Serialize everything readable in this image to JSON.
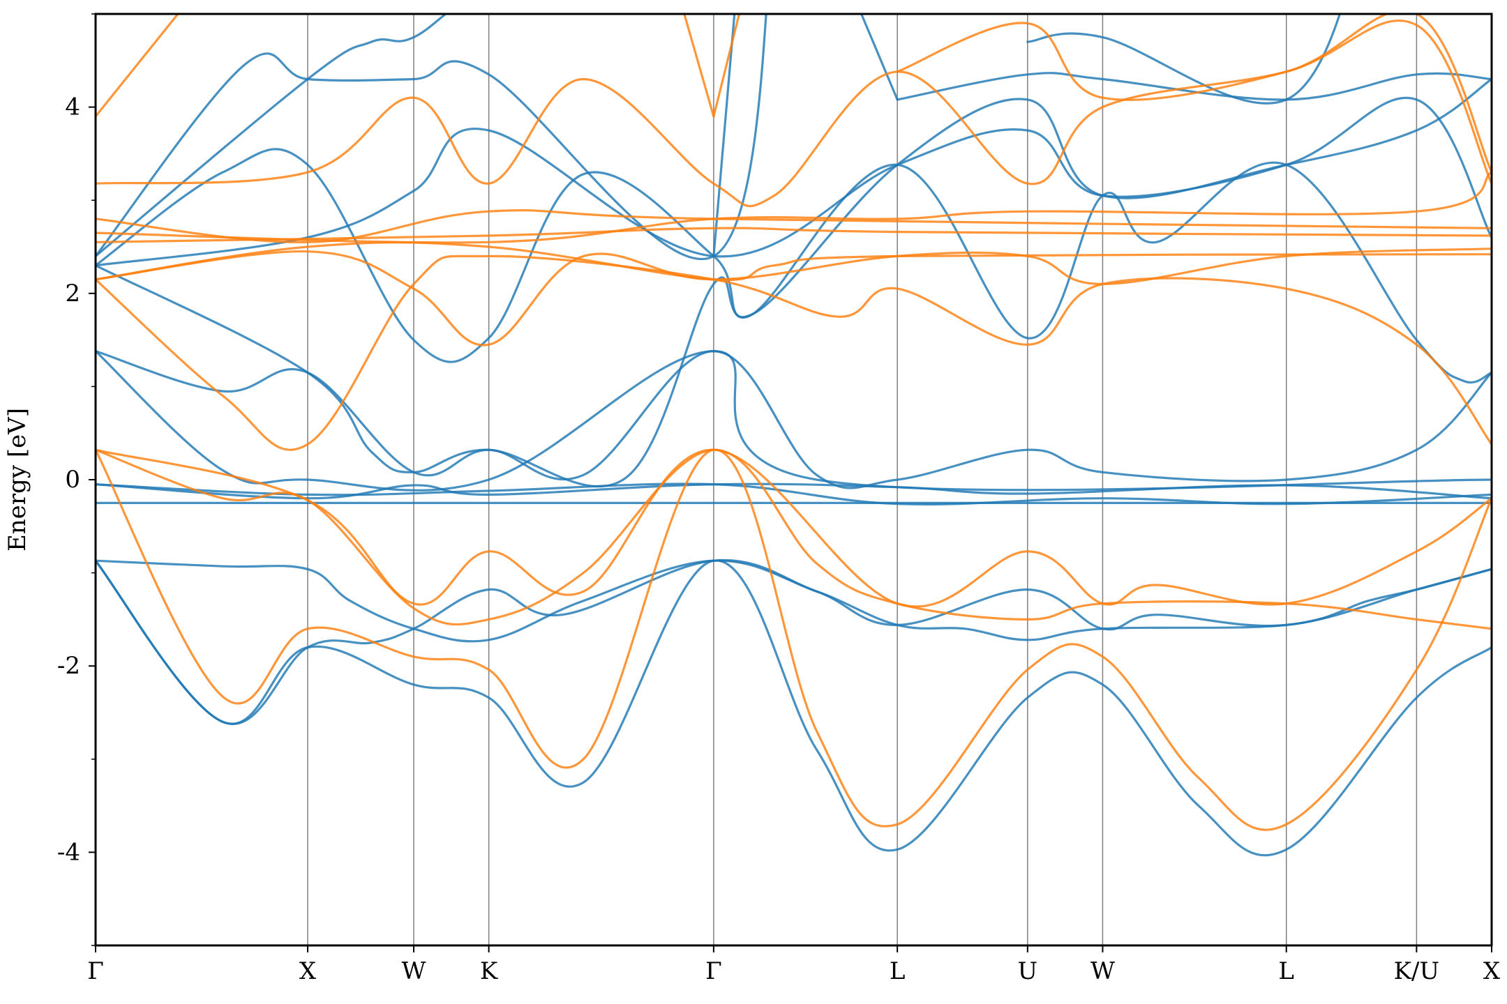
{
  "chart_data": {
    "type": "line",
    "title": "",
    "xlabel": "",
    "ylabel": "Energy [eV]",
    "ylim": [
      -5,
      5
    ],
    "y_ticks": [
      -4,
      -2,
      0,
      2,
      4
    ],
    "y_tick_labels": [
      "-4",
      "-2",
      "0",
      "2",
      "4"
    ],
    "y_minor_ticks": [
      -5,
      -3,
      -1,
      1,
      3,
      5
    ],
    "grid": false,
    "legend": "none",
    "colors": {
      "spin_up": "#1f77b4",
      "spin_down": "#ff7f0e",
      "kpath_lines": "#7f7f7f"
    },
    "kpath": {
      "labels": [
        "Γ",
        "X",
        "W",
        "K",
        "Γ",
        "L",
        "U",
        "W",
        "L",
        "K/U",
        "X"
      ],
      "positions": [
        0,
        1.0,
        1.5,
        1.854,
        2.914,
        3.78,
        4.394,
        4.748,
        5.614,
        6.228,
        6.582
      ],
      "xlim": [
        0,
        6.582
      ]
    },
    "series": [
      {
        "color": "#1f77b4",
        "points": [
          [
            0,
            -0.87
          ],
          [
            0.6,
            -0.93
          ],
          [
            1.0,
            -0.96
          ],
          [
            1.2,
            -1.3
          ],
          [
            1.5,
            -1.6
          ],
          [
            1.854,
            -1.72
          ],
          [
            2.3,
            -1.3
          ],
          [
            2.914,
            -0.87
          ],
          [
            3.4,
            -1.2
          ],
          [
            3.78,
            -1.56
          ],
          [
            4.1,
            -1.6
          ],
          [
            4.394,
            -1.72
          ],
          [
            4.748,
            -1.6
          ],
          [
            5.614,
            -1.56
          ],
          [
            6.0,
            -1.3
          ],
          [
            6.228,
            -1.18
          ],
          [
            6.582,
            -0.96
          ]
        ]
      },
      {
        "color": "#1f77b4",
        "points": [
          [
            0,
            -0.87
          ],
          [
            0.6,
            -2.6
          ],
          [
            1.0,
            -1.8
          ],
          [
            1.3,
            -1.75
          ],
          [
            1.5,
            -1.6
          ],
          [
            1.854,
            -1.18
          ],
          [
            2.2,
            -1.45
          ],
          [
            2.914,
            -0.87
          ],
          [
            3.4,
            -1.2
          ],
          [
            3.78,
            -1.56
          ],
          [
            4.394,
            -1.18
          ],
          [
            4.748,
            -1.6
          ],
          [
            5.0,
            -1.45
          ],
          [
            5.614,
            -1.56
          ],
          [
            6.228,
            -1.18
          ],
          [
            6.582,
            -0.96
          ]
        ]
      },
      {
        "color": "#1f77b4",
        "points": [
          [
            0,
            -0.87
          ],
          [
            0.6,
            -2.6
          ],
          [
            1.0,
            -1.8
          ],
          [
            1.5,
            -2.2
          ],
          [
            1.854,
            -2.34
          ],
          [
            2.3,
            -3.25
          ],
          [
            2.914,
            -0.87
          ],
          [
            3.4,
            -2.9
          ],
          [
            3.78,
            -3.97
          ],
          [
            4.394,
            -2.34
          ],
          [
            4.748,
            -2.2
          ],
          [
            5.2,
            -3.5
          ],
          [
            5.614,
            -3.97
          ],
          [
            6.228,
            -2.34
          ],
          [
            6.582,
            -1.8
          ]
        ]
      },
      {
        "color": "#1f77b4",
        "points": [
          [
            0,
            -0.25
          ],
          [
            6.582,
            -0.25
          ]
        ]
      },
      {
        "color": "#1f77b4",
        "points": [
          [
            0,
            -0.05
          ],
          [
            1.0,
            -0.16
          ],
          [
            1.854,
            -0.12
          ],
          [
            2.914,
            -0.05
          ],
          [
            3.78,
            -0.26
          ],
          [
            4.748,
            -0.2
          ],
          [
            5.614,
            -0.26
          ],
          [
            6.582,
            -0.16
          ]
        ]
      },
      {
        "color": "#1f77b4",
        "points": [
          [
            0,
            -0.05
          ],
          [
            1.0,
            -0.2
          ],
          [
            1.5,
            -0.06
          ],
          [
            1.854,
            -0.16
          ],
          [
            2.914,
            -0.05
          ],
          [
            3.78,
            -0.08
          ],
          [
            4.394,
            -0.15
          ],
          [
            5.614,
            -0.06
          ],
          [
            6.582,
            -0.2
          ]
        ]
      },
      {
        "color": "#1f77b4",
        "points": [
          [
            0,
            1.38
          ],
          [
            0.6,
            0.95
          ],
          [
            1.0,
            1.15
          ],
          [
            1.5,
            0.08
          ],
          [
            1.854,
            0.32
          ],
          [
            2.3,
            0.05
          ],
          [
            2.914,
            1.38
          ],
          [
            3.4,
            0.05
          ],
          [
            3.78,
            0.0
          ],
          [
            4.394,
            0.32
          ],
          [
            4.748,
            0.08
          ],
          [
            5.614,
            0.0
          ],
          [
            6.228,
            0.32
          ],
          [
            6.582,
            1.15
          ]
        ]
      },
      {
        "color": "#1f77b4",
        "points": [
          [
            0,
            1.38
          ],
          [
            0.6,
            0.1
          ],
          [
            1.0,
            0.0
          ],
          [
            1.854,
            0.0
          ],
          [
            2.914,
            1.38
          ],
          [
            3.4,
            0.0
          ],
          [
            6.582,
            0.0
          ]
        ]
      },
      {
        "color": "#1f77b4",
        "points": [
          [
            0,
            2.3
          ],
          [
            1.0,
            1.15
          ],
          [
            1.3,
            0.3
          ],
          [
            1.5,
            0.08
          ],
          [
            1.854,
            0.32
          ],
          [
            2.5,
            0.02
          ],
          [
            2.914,
            2.1
          ],
          [
            3.1,
            1.78
          ],
          [
            3.78,
            3.38
          ],
          [
            4.394,
            1.52
          ],
          [
            4.748,
            3.05
          ],
          [
            5.0,
            2.55
          ],
          [
            5.614,
            3.38
          ],
          [
            6.228,
            1.5
          ],
          [
            6.45,
            1.06
          ],
          [
            6.582,
            1.15
          ]
        ]
      },
      {
        "color": "#1f77b4",
        "points": [
          [
            0,
            2.3
          ],
          [
            1.0,
            2.6
          ],
          [
            1.5,
            3.1
          ],
          [
            1.854,
            3.75
          ],
          [
            2.914,
            2.4
          ],
          [
            3.78,
            3.38
          ],
          [
            4.394,
            3.75
          ],
          [
            4.748,
            3.05
          ],
          [
            5.614,
            3.38
          ],
          [
            6.228,
            4.08
          ],
          [
            6.582,
            2.6
          ]
        ]
      },
      {
        "color": "#1f77b4",
        "points": [
          [
            0,
            2.3
          ],
          [
            0.6,
            3.3
          ],
          [
            1.0,
            3.38
          ],
          [
            1.5,
            1.5
          ],
          [
            1.854,
            1.52
          ],
          [
            2.3,
            3.28
          ],
          [
            2.914,
            2.4
          ],
          [
            3.1,
            1.78
          ],
          [
            3.78,
            3.38
          ],
          [
            4.394,
            4.08
          ],
          [
            4.748,
            3.05
          ],
          [
            5.614,
            3.38
          ],
          [
            6.228,
            3.75
          ],
          [
            6.582,
            4.3
          ]
        ]
      },
      {
        "color": "#1f77b4",
        "points": [
          [
            0,
            2.4
          ],
          [
            0.7,
            4.45
          ],
          [
            1.0,
            4.3
          ],
          [
            1.5,
            4.3
          ],
          [
            1.854,
            4.35
          ],
          [
            2.914,
            2.4
          ],
          [
            3.2,
            6.0
          ]
        ]
      },
      {
        "color": "#1f77b4",
        "points": [
          [
            0,
            2.4
          ],
          [
            1.0,
            4.3
          ],
          [
            1.3,
            4.7
          ],
          [
            1.5,
            4.75
          ],
          [
            1.854,
            5.3
          ],
          [
            2.6,
            6.0
          ]
        ]
      },
      {
        "color": "#1f77b4",
        "points": [
          [
            2.914,
            2.4
          ],
          [
            3.05,
            6.0
          ]
        ]
      },
      {
        "color": "#1f77b4",
        "points": [
          [
            3.78,
            4.08
          ],
          [
            3.5,
            5.6
          ]
        ]
      },
      {
        "color": "#1f77b4",
        "points": [
          [
            3.78,
            4.08
          ],
          [
            4.394,
            4.35
          ],
          [
            4.748,
            4.3
          ],
          [
            5.614,
            4.08
          ],
          [
            6.228,
            4.35
          ],
          [
            6.582,
            4.3
          ]
        ]
      },
      {
        "color": "#1f77b4",
        "points": [
          [
            4.394,
            4.7
          ],
          [
            4.748,
            4.75
          ],
          [
            5.614,
            4.08
          ],
          [
            6.0,
            6.0
          ]
        ]
      },
      {
        "color": "#ff7f0e",
        "points": [
          [
            0,
            0.32
          ],
          [
            0.6,
            -2.33
          ],
          [
            1.0,
            -1.6
          ],
          [
            1.5,
            -1.9
          ],
          [
            1.854,
            -2.04
          ],
          [
            2.3,
            -3.0
          ],
          [
            2.914,
            0.32
          ],
          [
            3.4,
            -2.7
          ],
          [
            3.78,
            -3.7
          ],
          [
            4.394,
            -2.04
          ],
          [
            4.748,
            -1.9
          ],
          [
            5.2,
            -3.2
          ],
          [
            5.614,
            -3.7
          ],
          [
            6.228,
            -2.04
          ],
          [
            6.582,
            -0.2
          ]
        ]
      },
      {
        "color": "#ff7f0e",
        "points": [
          [
            0,
            0.32
          ],
          [
            0.6,
            -0.2
          ],
          [
            1.0,
            -0.22
          ],
          [
            1.5,
            -1.38
          ],
          [
            1.854,
            -1.5
          ],
          [
            2.3,
            -1.0
          ],
          [
            2.914,
            0.32
          ],
          [
            3.4,
            -0.9
          ],
          [
            3.78,
            -1.33
          ],
          [
            4.394,
            -1.5
          ],
          [
            4.748,
            -1.33
          ],
          [
            5.614,
            -1.33
          ],
          [
            6.228,
            -1.5
          ],
          [
            6.582,
            -1.6
          ]
        ]
      },
      {
        "color": "#ff7f0e",
        "points": [
          [
            0,
            0.32
          ],
          [
            1.0,
            -0.22
          ],
          [
            1.5,
            -1.33
          ],
          [
            1.854,
            -0.77
          ],
          [
            2.3,
            -1.2
          ],
          [
            2.914,
            0.32
          ],
          [
            3.78,
            -1.33
          ],
          [
            4.394,
            -0.77
          ],
          [
            4.748,
            -1.33
          ],
          [
            5.0,
            -1.13
          ],
          [
            5.614,
            -1.33
          ],
          [
            6.228,
            -0.77
          ],
          [
            6.582,
            -0.2
          ]
        ]
      },
      {
        "color": "#ff7f0e",
        "points": [
          [
            0,
            2.15
          ],
          [
            0.6,
            0.9
          ],
          [
            1.0,
            0.38
          ],
          [
            1.5,
            2.1
          ],
          [
            1.854,
            2.4
          ],
          [
            2.914,
            2.15
          ],
          [
            3.5,
            1.75
          ],
          [
            3.78,
            2.05
          ],
          [
            4.394,
            1.45
          ],
          [
            4.748,
            2.1
          ],
          [
            5.614,
            2.05
          ],
          [
            6.228,
            1.45
          ],
          [
            6.582,
            0.38
          ]
        ]
      },
      {
        "color": "#ff7f0e",
        "points": [
          [
            0,
            2.15
          ],
          [
            1.0,
            2.45
          ],
          [
            1.5,
            2.05
          ],
          [
            1.854,
            1.45
          ],
          [
            2.3,
            2.4
          ],
          [
            2.914,
            2.15
          ],
          [
            3.78,
            2.4
          ],
          [
            4.394,
            2.4
          ],
          [
            4.748,
            2.1
          ],
          [
            5.614,
            2.4
          ],
          [
            6.582,
            2.48
          ]
        ]
      },
      {
        "color": "#ff7f0e",
        "points": [
          [
            0,
            2.15
          ],
          [
            1.0,
            2.5
          ],
          [
            1.854,
            2.5
          ],
          [
            2.914,
            2.15
          ],
          [
            3.2,
            2.3
          ],
          [
            3.78,
            2.4
          ],
          [
            6.582,
            2.42
          ]
        ]
      },
      {
        "color": "#ff7f0e",
        "points": [
          [
            0,
            2.55
          ],
          [
            1.854,
            2.62
          ],
          [
            2.914,
            2.7
          ],
          [
            3.78,
            2.66
          ],
          [
            6.582,
            2.62
          ]
        ]
      },
      {
        "color": "#ff7f0e",
        "points": [
          [
            0,
            2.65
          ],
          [
            1.854,
            2.55
          ],
          [
            2.914,
            2.8
          ],
          [
            3.78,
            2.8
          ],
          [
            4.394,
            2.88
          ],
          [
            6.228,
            2.88
          ],
          [
            6.582,
            3.3
          ]
        ]
      },
      {
        "color": "#ff7f0e",
        "points": [
          [
            0,
            2.8
          ],
          [
            1.0,
            2.55
          ],
          [
            1.854,
            2.88
          ],
          [
            2.914,
            2.8
          ],
          [
            6.582,
            2.7
          ]
        ]
      },
      {
        "color": "#ff7f0e",
        "points": [
          [
            0,
            3.18
          ],
          [
            1.0,
            3.3
          ],
          [
            1.5,
            4.1
          ],
          [
            1.854,
            3.18
          ],
          [
            2.3,
            4.3
          ],
          [
            2.914,
            3.18
          ],
          [
            3.2,
            3.05
          ],
          [
            3.78,
            4.38
          ],
          [
            4.394,
            3.18
          ],
          [
            4.748,
            4.0
          ],
          [
            5.614,
            4.38
          ],
          [
            6.228,
            4.88
          ],
          [
            6.582,
            3.18
          ]
        ]
      },
      {
        "color": "#ff7f0e",
        "points": [
          [
            0,
            3.9
          ],
          [
            0.6,
            5.6
          ]
        ]
      },
      {
        "color": "#ff7f0e",
        "points": [
          [
            2.914,
            3.9
          ],
          [
            2.7,
            5.6
          ]
        ]
      },
      {
        "color": "#ff7f0e",
        "points": [
          [
            2.914,
            3.9
          ],
          [
            3.1,
            5.6
          ]
        ]
      },
      {
        "color": "#ff7f0e",
        "points": [
          [
            3.78,
            4.38
          ],
          [
            4.394,
            4.9
          ],
          [
            4.748,
            4.1
          ],
          [
            5.614,
            4.38
          ],
          [
            6.228,
            5.0
          ],
          [
            6.582,
            3.3
          ]
        ]
      }
    ]
  }
}
